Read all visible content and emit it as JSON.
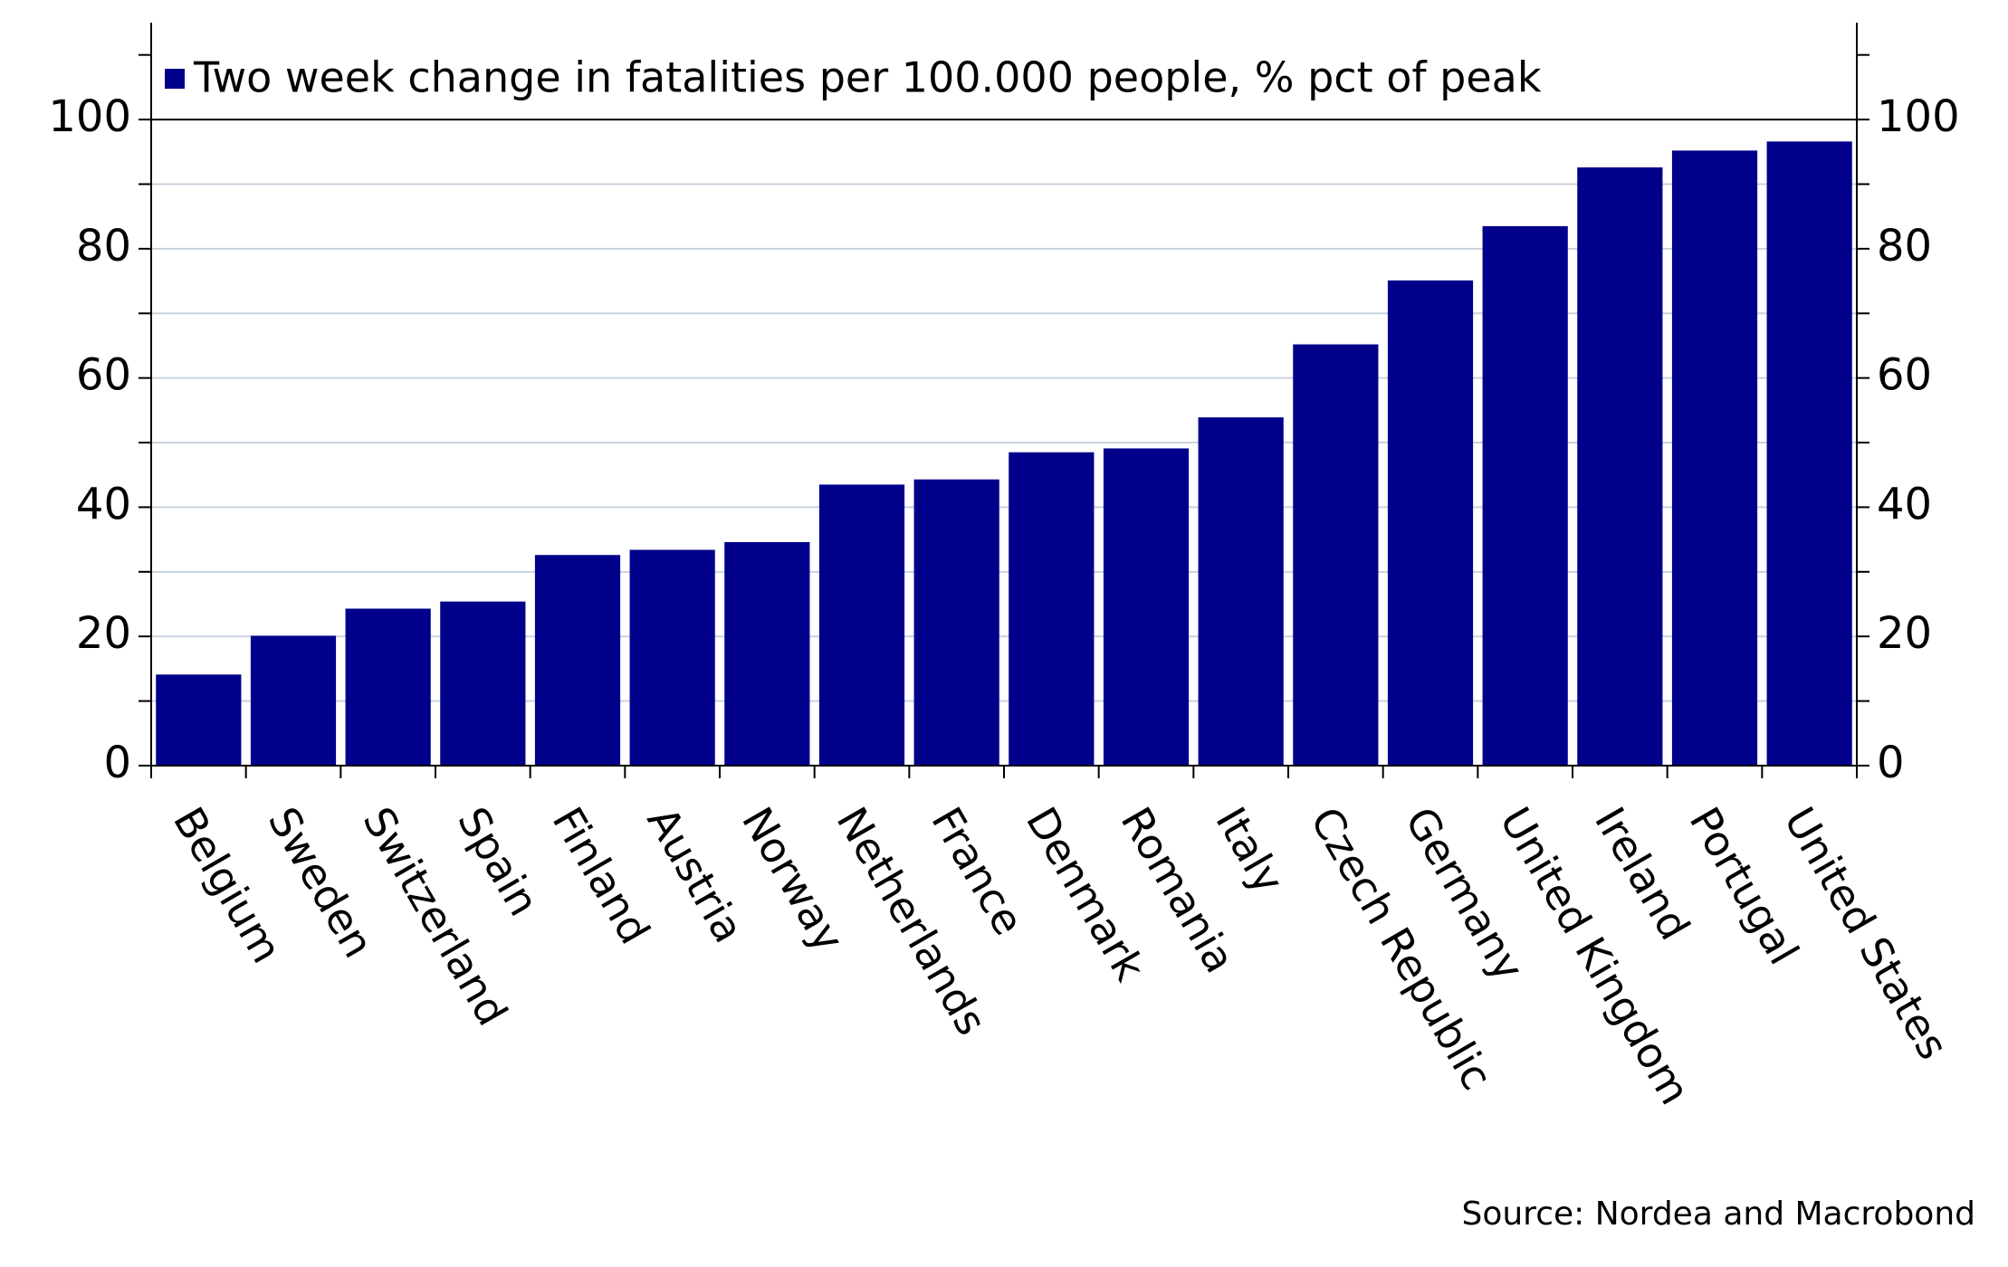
{
  "chart_data": {
    "type": "bar",
    "categories": [
      "Belgium",
      "Sweden",
      "Switzerland",
      "Spain",
      "Finland",
      "Austria",
      "Norway",
      "Netherlands",
      "France",
      "Denmark",
      "Romania",
      "Italy",
      "Czech Republic",
      "Germany",
      "United Kingdom",
      "Ireland",
      "Portugal",
      "United States"
    ],
    "series": [
      {
        "name": "Two week change in fatalities per 100.000 people, % pct of peak",
        "color": "#00008b",
        "values": [
          14.1,
          20.1,
          24.3,
          25.4,
          32.6,
          33.4,
          34.6,
          43.5,
          44.3,
          48.5,
          49.1,
          53.9,
          65.2,
          75.1,
          83.5,
          92.6,
          95.2,
          96.6
        ]
      }
    ],
    "ylim": [
      0,
      115
    ],
    "yticks": [
      0,
      20,
      40,
      60,
      80,
      100
    ],
    "minor_yticks": [
      10,
      30,
      50,
      70,
      90,
      110
    ],
    "grid": true,
    "source": "Source: Nordea and Macrobond"
  }
}
